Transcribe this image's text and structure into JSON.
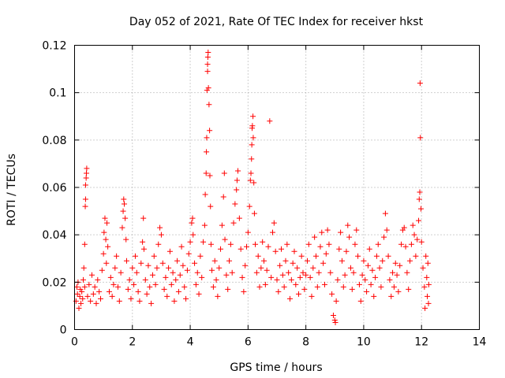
{
  "chart_data": {
    "type": "scatter",
    "title": "Day 052 of 2021, Rate Of TEC Index for receiver hkst",
    "xlabel": "GPS time / hours",
    "ylabel": "ROTI / TECUs",
    "xlim": [
      0,
      14
    ],
    "ylim": [
      0,
      0.12
    ],
    "xticks": [
      0,
      2,
      4,
      6,
      8,
      10,
      12,
      14
    ],
    "xtick_labels": [
      "0",
      "2",
      "4",
      "6",
      "8",
      "10",
      "12",
      "14"
    ],
    "yticks": [
      0,
      0.02,
      0.04,
      0.06,
      0.08,
      0.1,
      0.12
    ],
    "ytick_labels": [
      "0",
      "0.02",
      "0.04",
      "0.06",
      "0.08",
      "0.1",
      "0.12"
    ],
    "grid": true,
    "marker": "+",
    "color": "#ff0000",
    "series": [
      {
        "name": "ROTI",
        "points": [
          [
            0.05,
            0.012
          ],
          [
            0.08,
            0.018
          ],
          [
            0.1,
            0.015
          ],
          [
            0.12,
            0.02
          ],
          [
            0.15,
            0.009
          ],
          [
            0.18,
            0.014
          ],
          [
            0.2,
            0.017
          ],
          [
            0.22,
            0.011
          ],
          [
            0.25,
            0.016
          ],
          [
            0.28,
            0.013
          ],
          [
            0.3,
            0.021
          ],
          [
            0.32,
            0.026
          ],
          [
            0.35,
            0.018
          ],
          [
            0.35,
            0.036
          ],
          [
            0.37,
            0.052
          ],
          [
            0.38,
            0.055
          ],
          [
            0.38,
            0.061
          ],
          [
            0.4,
            0.064
          ],
          [
            0.41,
            0.066
          ],
          [
            0.42,
            0.068
          ],
          [
            0.45,
            0.014
          ],
          [
            0.5,
            0.019
          ],
          [
            0.55,
            0.012
          ],
          [
            0.6,
            0.023
          ],
          [
            0.65,
            0.015
          ],
          [
            0.7,
            0.018
          ],
          [
            0.75,
            0.011
          ],
          [
            0.8,
            0.021
          ],
          [
            0.85,
            0.016
          ],
          [
            0.9,
            0.013
          ],
          [
            0.95,
            0.025
          ],
          [
            1.0,
            0.032
          ],
          [
            1.02,
            0.041
          ],
          [
            1.05,
            0.047
          ],
          [
            1.08,
            0.038
          ],
          [
            1.1,
            0.028
          ],
          [
            1.12,
            0.045
          ],
          [
            1.15,
            0.035
          ],
          [
            1.2,
            0.016
          ],
          [
            1.25,
            0.022
          ],
          [
            1.3,
            0.014
          ],
          [
            1.35,
            0.019
          ],
          [
            1.4,
            0.026
          ],
          [
            1.45,
            0.031
          ],
          [
            1.5,
            0.018
          ],
          [
            1.55,
            0.012
          ],
          [
            1.6,
            0.024
          ],
          [
            1.65,
            0.043
          ],
          [
            1.68,
            0.05
          ],
          [
            1.7,
            0.055
          ],
          [
            1.72,
            0.053
          ],
          [
            1.75,
            0.047
          ],
          [
            1.78,
            0.038
          ],
          [
            1.8,
            0.029
          ],
          [
            1.85,
            0.017
          ],
          [
            1.9,
            0.021
          ],
          [
            1.95,
            0.013
          ],
          [
            2.0,
            0.026
          ],
          [
            2.05,
            0.019
          ],
          [
            2.1,
            0.031
          ],
          [
            2.15,
            0.024
          ],
          [
            2.2,
            0.016
          ],
          [
            2.25,
            0.012
          ],
          [
            2.3,
            0.028
          ],
          [
            2.35,
            0.037
          ],
          [
            2.38,
            0.047
          ],
          [
            2.4,
            0.034
          ],
          [
            2.45,
            0.021
          ],
          [
            2.5,
            0.015
          ],
          [
            2.55,
            0.027
          ],
          [
            2.6,
            0.018
          ],
          [
            2.65,
            0.011
          ],
          [
            2.7,
            0.023
          ],
          [
            2.75,
            0.031
          ],
          [
            2.8,
            0.019
          ],
          [
            2.85,
            0.026
          ],
          [
            2.9,
            0.036
          ],
          [
            2.95,
            0.043
          ],
          [
            3.0,
            0.04
          ],
          [
            3.05,
            0.028
          ],
          [
            3.1,
            0.017
          ],
          [
            3.15,
            0.022
          ],
          [
            3.2,
            0.014
          ],
          [
            3.25,
            0.026
          ],
          [
            3.3,
            0.033
          ],
          [
            3.35,
            0.019
          ],
          [
            3.4,
            0.024
          ],
          [
            3.45,
            0.012
          ],
          [
            3.5,
            0.021
          ],
          [
            3.55,
            0.029
          ],
          [
            3.6,
            0.016
          ],
          [
            3.65,
            0.023
          ],
          [
            3.7,
            0.035
          ],
          [
            3.75,
            0.027
          ],
          [
            3.8,
            0.018
          ],
          [
            3.85,
            0.013
          ],
          [
            3.9,
            0.025
          ],
          [
            3.95,
            0.032
          ],
          [
            4.0,
            0.037
          ],
          [
            4.05,
            0.045
          ],
          [
            4.08,
            0.047
          ],
          [
            4.1,
            0.04
          ],
          [
            4.15,
            0.028
          ],
          [
            4.2,
            0.019
          ],
          [
            4.25,
            0.024
          ],
          [
            4.3,
            0.015
          ],
          [
            4.35,
            0.031
          ],
          [
            4.4,
            0.022
          ],
          [
            4.45,
            0.037
          ],
          [
            4.5,
            0.044
          ],
          [
            4.52,
            0.057
          ],
          [
            4.55,
            0.066
          ],
          [
            4.56,
            0.075
          ],
          [
            4.57,
            0.081
          ],
          [
            4.58,
            0.101
          ],
          [
            4.6,
            0.109
          ],
          [
            4.6,
            0.112
          ],
          [
            4.61,
            0.115
          ],
          [
            4.62,
            0.117
          ],
          [
            4.63,
            0.102
          ],
          [
            4.65,
            0.095
          ],
          [
            4.67,
            0.084
          ],
          [
            4.68,
            0.065
          ],
          [
            4.7,
            0.052
          ],
          [
            4.72,
            0.036
          ],
          [
            4.75,
            0.025
          ],
          [
            4.8,
            0.018
          ],
          [
            4.85,
            0.029
          ],
          [
            4.9,
            0.021
          ],
          [
            4.95,
            0.014
          ],
          [
            5.0,
            0.026
          ],
          [
            5.05,
            0.034
          ],
          [
            5.1,
            0.044
          ],
          [
            5.15,
            0.056
          ],
          [
            5.18,
            0.066
          ],
          [
            5.2,
            0.038
          ],
          [
            5.25,
            0.023
          ],
          [
            5.3,
            0.017
          ],
          [
            5.35,
            0.029
          ],
          [
            5.4,
            0.036
          ],
          [
            5.45,
            0.024
          ],
          [
            5.5,
            0.045
          ],
          [
            5.55,
            0.053
          ],
          [
            5.6,
            0.059
          ],
          [
            5.62,
            0.063
          ],
          [
            5.65,
            0.067
          ],
          [
            5.7,
            0.047
          ],
          [
            5.75,
            0.034
          ],
          [
            5.8,
            0.022
          ],
          [
            5.85,
            0.016
          ],
          [
            5.9,
            0.027
          ],
          [
            5.95,
            0.035
          ],
          [
            6.0,
            0.041
          ],
          [
            6.05,
            0.052
          ],
          [
            6.08,
            0.063
          ],
          [
            6.1,
            0.066
          ],
          [
            6.12,
            0.072
          ],
          [
            6.13,
            0.078
          ],
          [
            6.14,
            0.085
          ],
          [
            6.15,
            0.086
          ],
          [
            6.17,
            0.09
          ],
          [
            6.18,
            0.081
          ],
          [
            6.2,
            0.062
          ],
          [
            6.22,
            0.049
          ],
          [
            6.25,
            0.036
          ],
          [
            6.3,
            0.024
          ],
          [
            6.35,
            0.031
          ],
          [
            6.4,
            0.018
          ],
          [
            6.45,
            0.026
          ],
          [
            6.5,
            0.037
          ],
          [
            6.55,
            0.029
          ],
          [
            6.6,
            0.019
          ],
          [
            6.65,
            0.025
          ],
          [
            6.7,
            0.035
          ],
          [
            6.75,
            0.088
          ],
          [
            6.8,
            0.022
          ],
          [
            6.85,
            0.041
          ],
          [
            6.9,
            0.045
          ],
          [
            6.95,
            0.033
          ],
          [
            7.0,
            0.021
          ],
          [
            7.05,
            0.016
          ],
          [
            7.1,
            0.027
          ],
          [
            7.15,
            0.034
          ],
          [
            7.2,
            0.023
          ],
          [
            7.25,
            0.018
          ],
          [
            7.3,
            0.029
          ],
          [
            7.35,
            0.036
          ],
          [
            7.4,
            0.024
          ],
          [
            7.45,
            0.013
          ],
          [
            7.5,
            0.021
          ],
          [
            7.55,
            0.028
          ],
          [
            7.6,
            0.033
          ],
          [
            7.65,
            0.019
          ],
          [
            7.7,
            0.026
          ],
          [
            7.75,
            0.015
          ],
          [
            7.8,
            0.022
          ],
          [
            7.85,
            0.031
          ],
          [
            7.9,
            0.024
          ],
          [
            7.95,
            0.017
          ],
          [
            8.0,
            0.023
          ],
          [
            8.05,
            0.029
          ],
          [
            8.1,
            0.036
          ],
          [
            8.15,
            0.022
          ],
          [
            8.2,
            0.014
          ],
          [
            8.25,
            0.026
          ],
          [
            8.3,
            0.039
          ],
          [
            8.35,
            0.031
          ],
          [
            8.4,
            0.018
          ],
          [
            8.45,
            0.024
          ],
          [
            8.5,
            0.035
          ],
          [
            8.55,
            0.041
          ],
          [
            8.6,
            0.028
          ],
          [
            8.65,
            0.019
          ],
          [
            8.7,
            0.032
          ],
          [
            8.75,
            0.042
          ],
          [
            8.8,
            0.036
          ],
          [
            8.85,
            0.024
          ],
          [
            8.9,
            0.015
          ],
          [
            8.95,
            0.006
          ],
          [
            9.0,
            0.004
          ],
          [
            9.02,
            0.003
          ],
          [
            9.05,
            0.012
          ],
          [
            9.1,
            0.021
          ],
          [
            9.15,
            0.034
          ],
          [
            9.2,
            0.041
          ],
          [
            9.25,
            0.029
          ],
          [
            9.3,
            0.018
          ],
          [
            9.35,
            0.023
          ],
          [
            9.4,
            0.033
          ],
          [
            9.45,
            0.044
          ],
          [
            9.5,
            0.039
          ],
          [
            9.55,
            0.026
          ],
          [
            9.6,
            0.017
          ],
          [
            9.65,
            0.024
          ],
          [
            9.7,
            0.036
          ],
          [
            9.75,
            0.042
          ],
          [
            9.8,
            0.031
          ],
          [
            9.85,
            0.019
          ],
          [
            9.9,
            0.012
          ],
          [
            9.95,
            0.023
          ],
          [
            10.0,
            0.029
          ],
          [
            10.05,
            0.021
          ],
          [
            10.1,
            0.016
          ],
          [
            10.15,
            0.027
          ],
          [
            10.2,
            0.034
          ],
          [
            10.25,
            0.019
          ],
          [
            10.3,
            0.025
          ],
          [
            10.35,
            0.014
          ],
          [
            10.4,
            0.022
          ],
          [
            10.45,
            0.031
          ],
          [
            10.5,
            0.036
          ],
          [
            10.55,
            0.026
          ],
          [
            10.6,
            0.018
          ],
          [
            10.65,
            0.029
          ],
          [
            10.7,
            0.039
          ],
          [
            10.75,
            0.049
          ],
          [
            10.8,
            0.042
          ],
          [
            10.85,
            0.031
          ],
          [
            10.9,
            0.021
          ],
          [
            10.95,
            0.014
          ],
          [
            11.0,
            0.024
          ],
          [
            11.05,
            0.018
          ],
          [
            11.1,
            0.028
          ],
          [
            11.15,
            0.023
          ],
          [
            11.2,
            0.016
          ],
          [
            11.25,
            0.027
          ],
          [
            11.3,
            0.036
          ],
          [
            11.35,
            0.042
          ],
          [
            11.4,
            0.043
          ],
          [
            11.45,
            0.035
          ],
          [
            11.5,
            0.024
          ],
          [
            11.55,
            0.017
          ],
          [
            11.6,
            0.029
          ],
          [
            11.65,
            0.036
          ],
          [
            11.7,
            0.044
          ],
          [
            11.75,
            0.04
          ],
          [
            11.8,
            0.031
          ],
          [
            11.85,
            0.038
          ],
          [
            11.9,
            0.046
          ],
          [
            11.92,
            0.055
          ],
          [
            11.94,
            0.058
          ],
          [
            11.95,
            0.104
          ],
          [
            11.96,
            0.081
          ],
          [
            11.98,
            0.051
          ],
          [
            12.0,
            0.037
          ],
          [
            12.05,
            0.026
          ],
          [
            12.1,
            0.018
          ],
          [
            12.12,
            0.009
          ],
          [
            12.15,
            0.031
          ],
          [
            12.18,
            0.022
          ],
          [
            12.2,
            0.014
          ],
          [
            12.22,
            0.028
          ],
          [
            12.24,
            0.011
          ],
          [
            12.25,
            0.019
          ]
        ]
      }
    ]
  }
}
